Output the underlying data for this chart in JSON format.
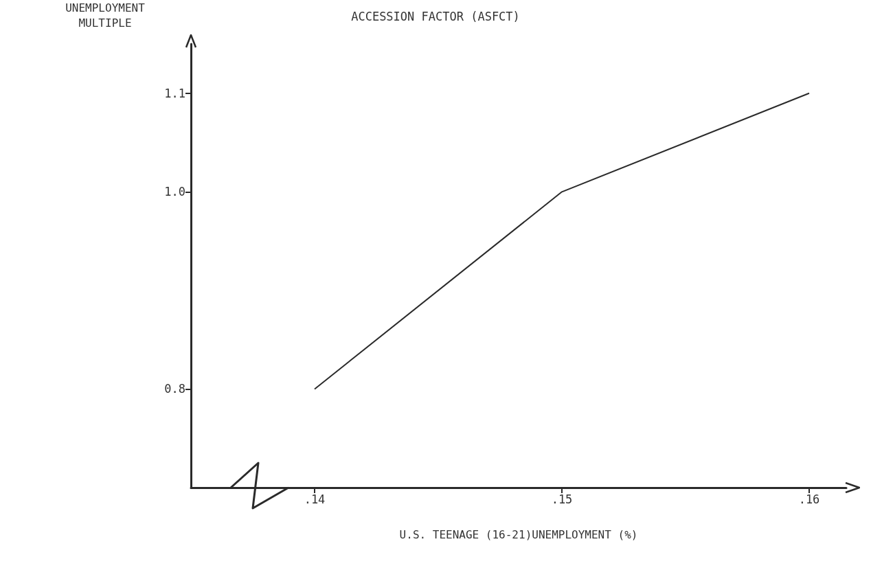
{
  "chart_data": {
    "type": "line",
    "title": "ACCESSION FACTOR (ASFCT)",
    "xlabel": "U.S. TEENAGE (16-21)UNEMPLOYMENT (%)",
    "ylabel": "UNEMPLOYMENT\nMULTIPLE",
    "x": [
      0.14,
      0.15,
      0.16
    ],
    "series": [
      {
        "color": "#2a2a2a",
        "values": [
          0.8,
          1.0,
          1.1
        ]
      }
    ],
    "xlim": [
      0.135,
      0.1615
    ],
    "ylim": [
      0.7,
      1.15
    ],
    "xticks": [
      {
        "value": 0.14,
        "label": ".14"
      },
      {
        "value": 0.15,
        "label": ".15"
      },
      {
        "value": 0.16,
        "label": ".16"
      }
    ],
    "yticks": [
      0.8,
      {
        "value": 1.0,
        "label": "1.0"
      },
      1.1
    ],
    "grid": false,
    "marker": "none",
    "line_style": "solid"
  }
}
